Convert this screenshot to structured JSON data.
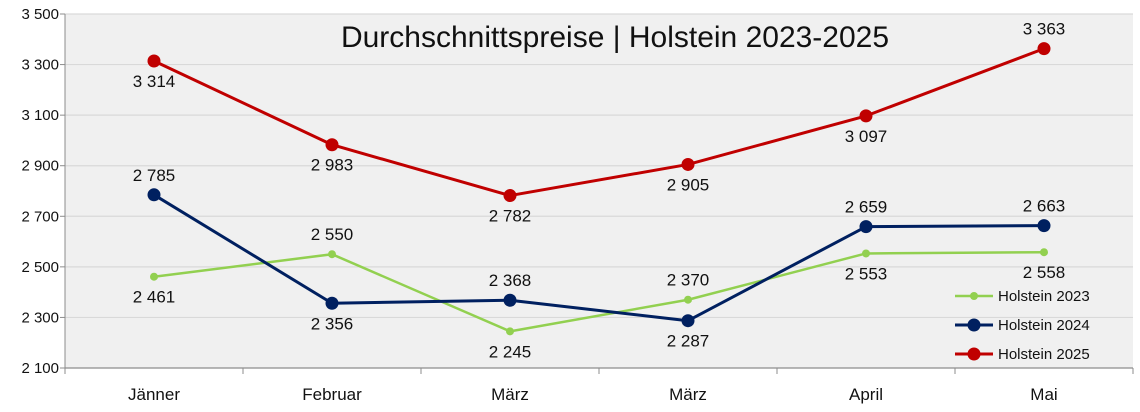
{
  "chart_data": {
    "type": "line",
    "title": "Durchschnittspreise | Holstein 2023-2025",
    "categories": [
      "Jänner",
      "Februar",
      "März",
      "März",
      "April",
      "Mai"
    ],
    "ylim": [
      2100,
      3500
    ],
    "yticks": [
      2100,
      2300,
      2500,
      2700,
      2900,
      3100,
      3300,
      3500
    ],
    "ytick_labels": [
      "2 100",
      "2 300",
      "2 500",
      "2 700",
      "2 900",
      "3 100",
      "3 300",
      "3 500"
    ],
    "grid": true,
    "legend_position": "bottom-right",
    "series": [
      {
        "name": "Holstein 2023",
        "color": "#92d050",
        "values": [
          2461,
          2550,
          2245,
          2370,
          2553,
          2558
        ],
        "labels": [
          "2 461",
          "2 550",
          "2 245",
          "2 370",
          "2 553",
          "2 558"
        ]
      },
      {
        "name": "Holstein 2024",
        "color": "#002060",
        "values": [
          2785,
          2356,
          2368,
          2287,
          2659,
          2663
        ],
        "labels": [
          "2 785",
          "2 356",
          "2 368",
          "2 287",
          "2 659",
          "2 663"
        ]
      },
      {
        "name": "Holstein 2025",
        "color": "#c00000",
        "values": [
          3314,
          2983,
          2782,
          2905,
          3097,
          3363
        ],
        "labels": [
          "3 314",
          "2 983",
          "2 782",
          "2 905",
          "3 097",
          "3 363"
        ]
      }
    ],
    "colors": {
      "plot_background": "#f0f0f0",
      "grid": "#d9d9d9",
      "axis": "#8c8c8c"
    }
  }
}
